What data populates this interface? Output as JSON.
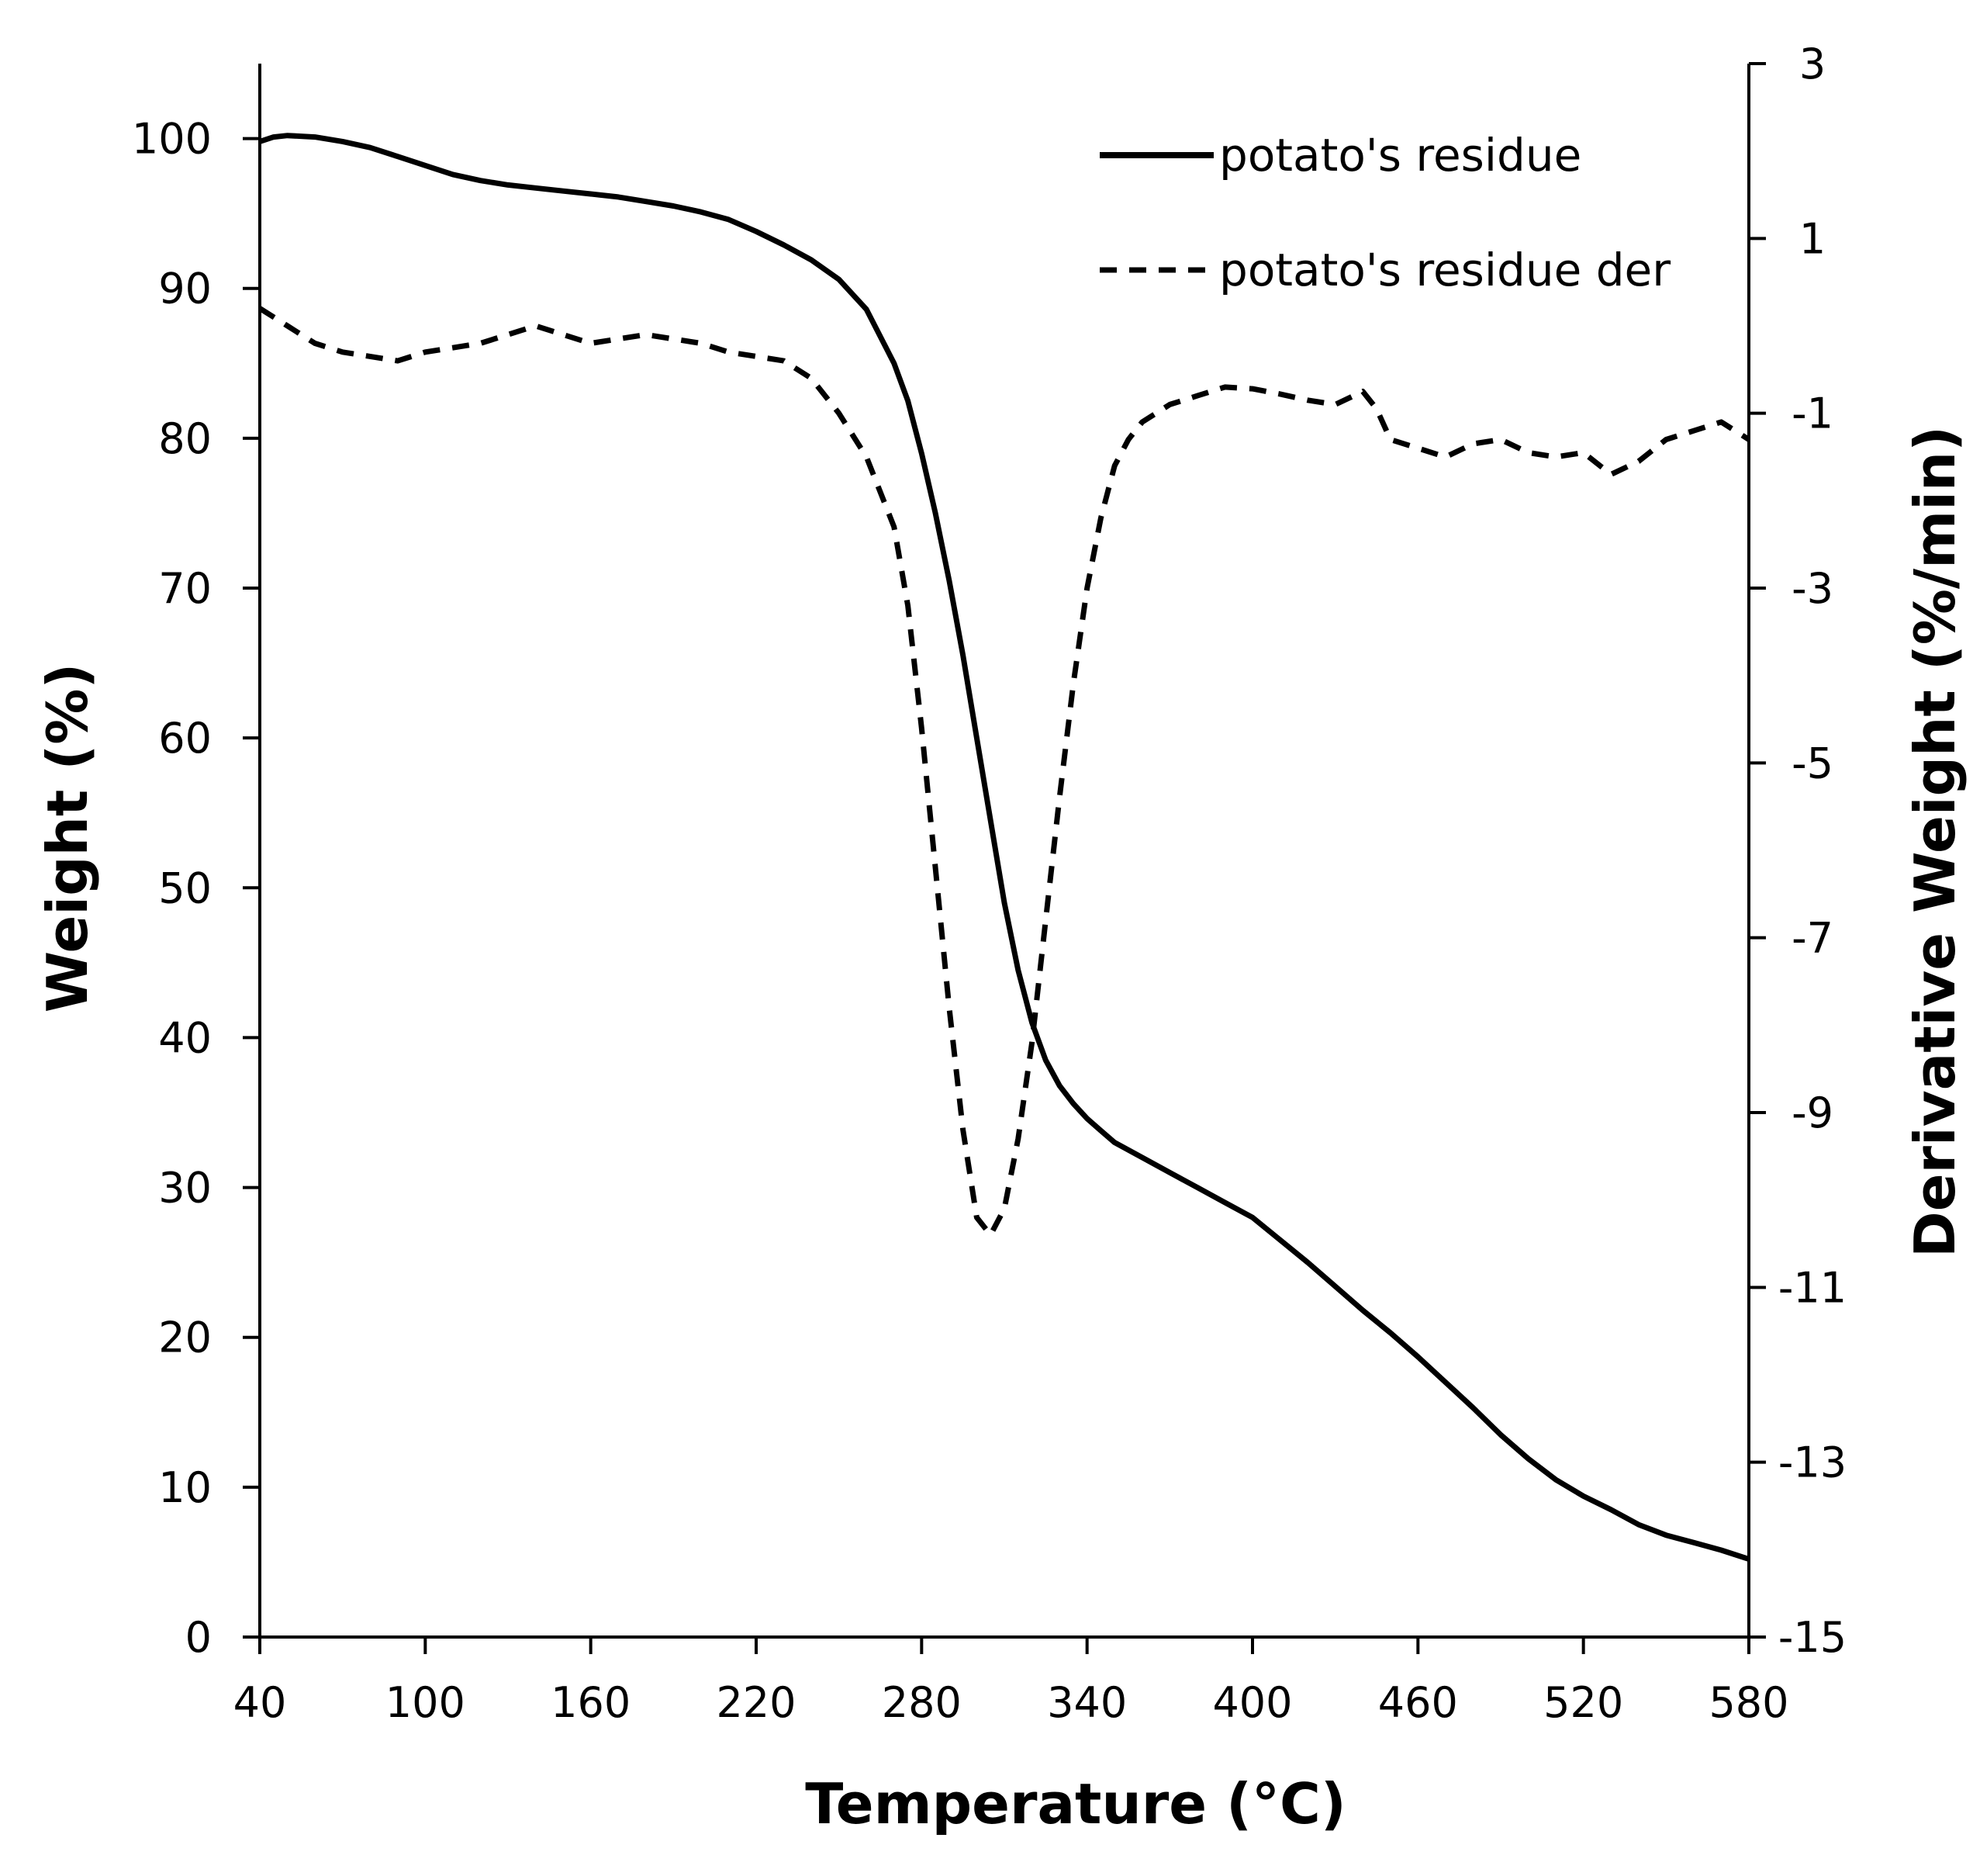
{
  "chart_data": {
    "type": "line",
    "xlabel": "Temperature (°C)",
    "ylabel": "Weight (%)",
    "y2label": "Derivative Weight (%/min)",
    "xlim": [
      40,
      580
    ],
    "ylim": [
      0,
      105
    ],
    "y2lim": [
      -15,
      3
    ],
    "xticks": [
      40,
      100,
      160,
      220,
      280,
      340,
      400,
      460,
      520,
      580
    ],
    "yticks": [
      0,
      10,
      20,
      30,
      40,
      50,
      60,
      70,
      80,
      90,
      100
    ],
    "y2ticks": [
      -15,
      -13,
      -11,
      -9,
      -7,
      -5,
      -3,
      -1,
      1,
      3
    ],
    "legend_position": "top-right",
    "series": [
      {
        "name": "potato's residue",
        "axis": "left",
        "style": "solid",
        "x": [
          40,
          45,
          50,
          60,
          70,
          80,
          90,
          100,
          110,
          120,
          130,
          140,
          150,
          160,
          170,
          180,
          190,
          200,
          210,
          220,
          230,
          240,
          250,
          260,
          270,
          275,
          280,
          285,
          290,
          295,
          300,
          305,
          310,
          315,
          320,
          325,
          330,
          335,
          340,
          345,
          350,
          360,
          370,
          380,
          390,
          400,
          410,
          420,
          430,
          440,
          450,
          460,
          470,
          480,
          490,
          500,
          510,
          520,
          530,
          540,
          550,
          560,
          570,
          580
        ],
        "values": [
          99.8,
          100.1,
          100.2,
          100.1,
          99.8,
          99.4,
          98.8,
          98.2,
          97.6,
          97.2,
          96.9,
          96.7,
          96.5,
          96.3,
          96.1,
          95.8,
          95.5,
          95.1,
          94.6,
          93.8,
          92.9,
          91.9,
          90.6,
          88.6,
          85.0,
          82.5,
          79.0,
          75.0,
          70.5,
          65.5,
          60.0,
          54.5,
          49.0,
          44.5,
          41.0,
          38.5,
          36.8,
          35.6,
          34.6,
          33.8,
          33.0,
          32.0,
          31.0,
          30.0,
          29.0,
          28.0,
          26.5,
          25.0,
          23.4,
          21.8,
          20.3,
          18.7,
          17.0,
          15.3,
          13.5,
          11.9,
          10.5,
          9.4,
          8.5,
          7.5,
          6.8,
          6.3,
          5.8,
          5.2
        ]
      },
      {
        "name": "potato's residue der",
        "axis": "right",
        "style": "dashed",
        "x": [
          40,
          45,
          50,
          55,
          60,
          70,
          80,
          90,
          100,
          110,
          120,
          130,
          140,
          150,
          160,
          170,
          180,
          190,
          200,
          210,
          220,
          230,
          240,
          250,
          260,
          270,
          275,
          280,
          285,
          290,
          295,
          300,
          305,
          310,
          315,
          320,
          325,
          330,
          335,
          340,
          345,
          350,
          355,
          360,
          365,
          370,
          375,
          380,
          385,
          390,
          400,
          410,
          420,
          430,
          440,
          445,
          450,
          460,
          470,
          480,
          490,
          500,
          510,
          520,
          530,
          540,
          550,
          560,
          570,
          580
        ],
        "values": [
          0.2,
          0.1,
          0.0,
          -0.1,
          -0.2,
          -0.3,
          -0.35,
          -0.4,
          -0.3,
          -0.25,
          -0.2,
          -0.1,
          0.0,
          -0.1,
          -0.2,
          -0.15,
          -0.1,
          -0.15,
          -0.2,
          -0.3,
          -0.35,
          -0.4,
          -0.6,
          -1.0,
          -1.5,
          -2.3,
          -3.2,
          -4.6,
          -6.2,
          -7.8,
          -9.2,
          -10.2,
          -10.4,
          -10.1,
          -9.3,
          -8.2,
          -6.8,
          -5.4,
          -4.1,
          -3.0,
          -2.2,
          -1.6,
          -1.3,
          -1.1,
          -1.0,
          -0.9,
          -0.85,
          -0.8,
          -0.75,
          -0.7,
          -0.72,
          -0.78,
          -0.85,
          -0.9,
          -0.75,
          -0.95,
          -1.3,
          -1.4,
          -1.5,
          -1.35,
          -1.3,
          -1.45,
          -1.5,
          -1.45,
          -1.7,
          -1.55,
          -1.3,
          -1.2,
          -1.1,
          -1.3
        ]
      }
    ]
  }
}
